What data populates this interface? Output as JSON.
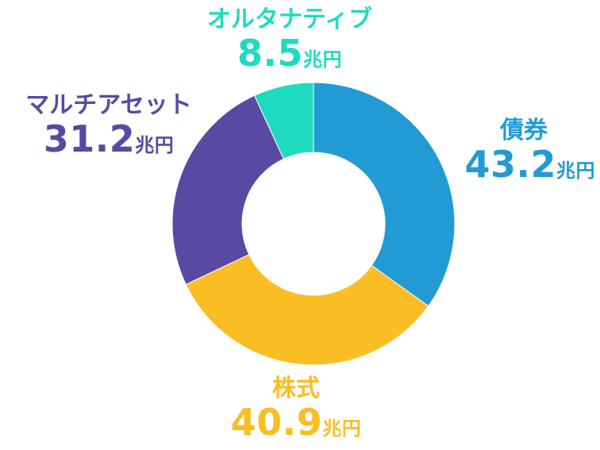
{
  "chart_data": {
    "type": "pie",
    "title": "",
    "segments": [
      {
        "label": "債券",
        "value": 43.2,
        "value_text": "43.2",
        "unit": "兆円",
        "color": "#229bd4"
      },
      {
        "label": "株式",
        "value": 40.9,
        "value_text": "40.9",
        "unit": "兆円",
        "color": "#fbbd24"
      },
      {
        "label": "マルチアセット",
        "value": 31.2,
        "value_text": "31.2",
        "unit": "兆円",
        "color": "#5a49a3"
      },
      {
        "label": "オルタナティブ",
        "value": 8.5,
        "value_text": "8.5",
        "unit": "兆円",
        "color": "#1edbc0"
      }
    ]
  }
}
